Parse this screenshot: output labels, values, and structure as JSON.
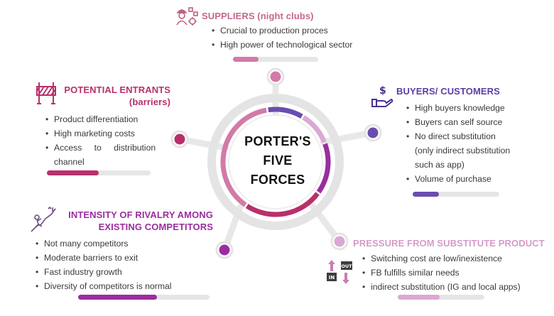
{
  "center": {
    "line1": "PORTER'S",
    "line2": "FIVE",
    "line3": "FORCES"
  },
  "colors": {
    "suppliers": "#d27aa8",
    "buyers": "#6a4caf",
    "substitutes": "#dba8d4",
    "rivalry": "#9b2d9f",
    "entrants": "#b8306b",
    "track": "#e6e6e6"
  },
  "suppliers": {
    "heading": "SUPPLIERS (night clubs)",
    "icon": "workers-icon",
    "bullets": [
      "Crucial to production proces",
      "High power of technological sector"
    ],
    "progress": 0.3
  },
  "buyers": {
    "heading": "BUYERS/ CUSTOMERS",
    "icon": "hand-dollar-icon",
    "bullets": [
      "High buyers knowledge",
      "Buyers can self source",
      "No direct substitution",
      "(only indirect substitution",
      "such as app)",
      "Volume of purchase"
    ],
    "progress": 0.3
  },
  "entrants": {
    "heading_line1": "POTENTIAL ENTRANTS",
    "heading_line2": "(barriers)",
    "icon": "barrier-icon",
    "bullets": [
      "Product differentiation",
      "High marketing costs",
      "Access to distribution",
      "channel"
    ],
    "progress": 0.5
  },
  "rivalry": {
    "heading_line1": "INTENSITY OF RIVALRY AMONG",
    "heading_line2": "EXISTING COMPETITORS",
    "icon": "climbing-figure-icon",
    "bullets": [
      "Not many competitors",
      "Moderate barriers to exit",
      "Fast industry growth",
      "Diversity of competitors is normal"
    ],
    "progress": 0.6
  },
  "substitutes": {
    "heading": "PRESSURE FROM SUBSTITUTE PRODUCT",
    "icon": "in-out-arrows-icon",
    "icon_in": "IN",
    "icon_out": "OUT",
    "bullets": [
      "Switching cost are low/inexistence",
      "FB fulfills similar needs",
      "indirect substitution (IG and local apps)"
    ],
    "progress": 0.48
  }
}
